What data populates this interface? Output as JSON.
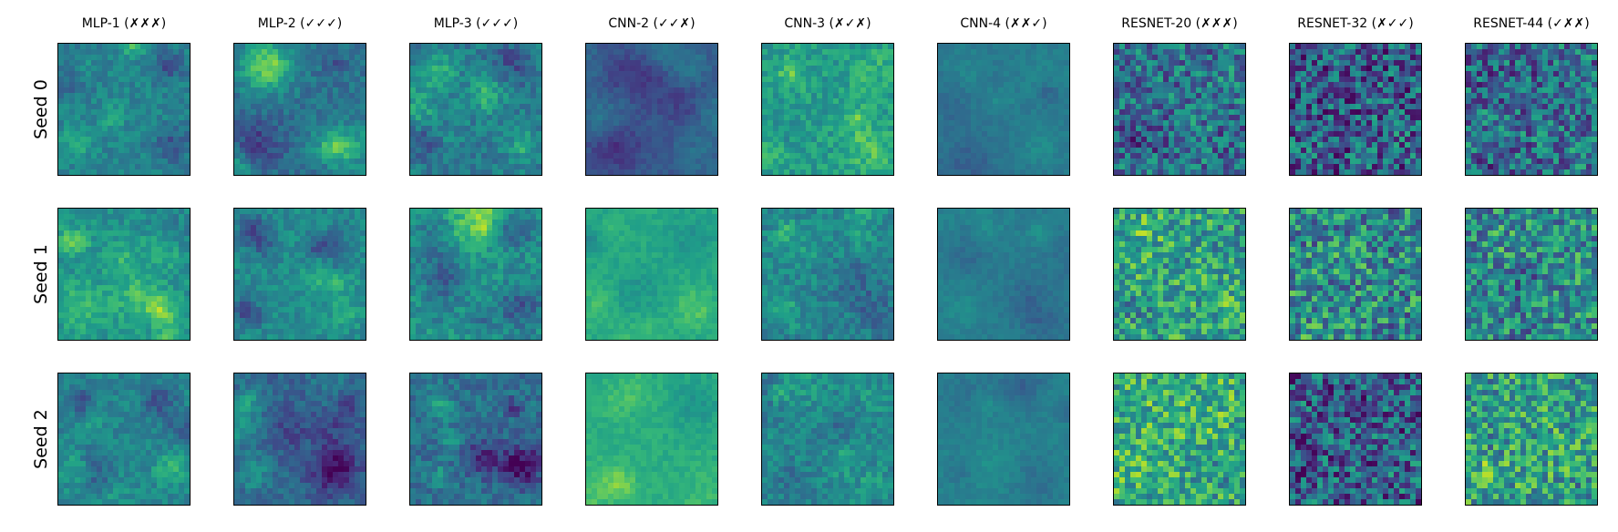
{
  "chart_data": {
    "type": "heatmap",
    "colormap": "viridis",
    "colors": {
      "low": "#440154",
      "mid": "#21918c",
      "high": "#fde725"
    },
    "grid": false,
    "axis_ticks": false,
    "columns": [
      "MLP-1 (✗✗✗)",
      "MLP-2 (✓✓✓)",
      "MLP-3 (✓✓✓)",
      "CNN-2 (✓✓✗)",
      "CNN-3 (✗✓✗)",
      "CNN-4 (✗✗✓)",
      "RESNET-20 (✗✗✗)",
      "RESNET-32 (✗✓✓)",
      "RESNET-44 (✓✗✗)"
    ],
    "rows": [
      "Seed 0",
      "Seed 1",
      "Seed 2"
    ],
    "panel_resolution": [
      24,
      24
    ],
    "value_range": [
      0,
      1
    ]
  }
}
